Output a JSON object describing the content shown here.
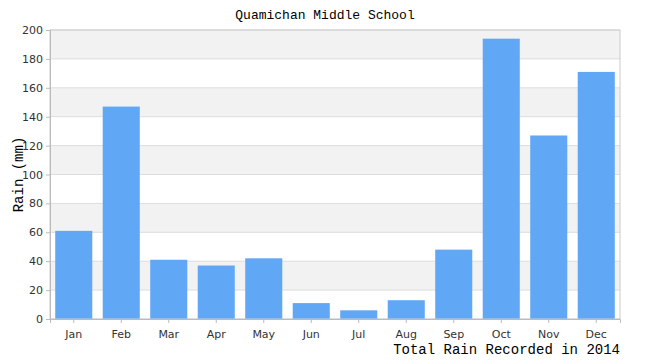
{
  "chart_data": {
    "type": "bar",
    "title": "Quamichan Middle School",
    "x_label": "Total Rain Recorded in 2014",
    "y_label": "Rain (mm)",
    "categories": [
      "Jan",
      "Feb",
      "Mar",
      "Apr",
      "May",
      "Jun",
      "Jul",
      "Aug",
      "Sep",
      "Oct",
      "Nov",
      "Dec"
    ],
    "values": [
      61,
      147,
      41,
      37,
      42,
      11,
      6,
      13,
      48,
      194,
      127,
      171
    ],
    "color": "#60a8f5",
    "ylim": [
      0,
      200
    ],
    "yticks": [
      0,
      20,
      40,
      60,
      80,
      100,
      120,
      140,
      160,
      180,
      200
    ],
    "grid": true
  }
}
